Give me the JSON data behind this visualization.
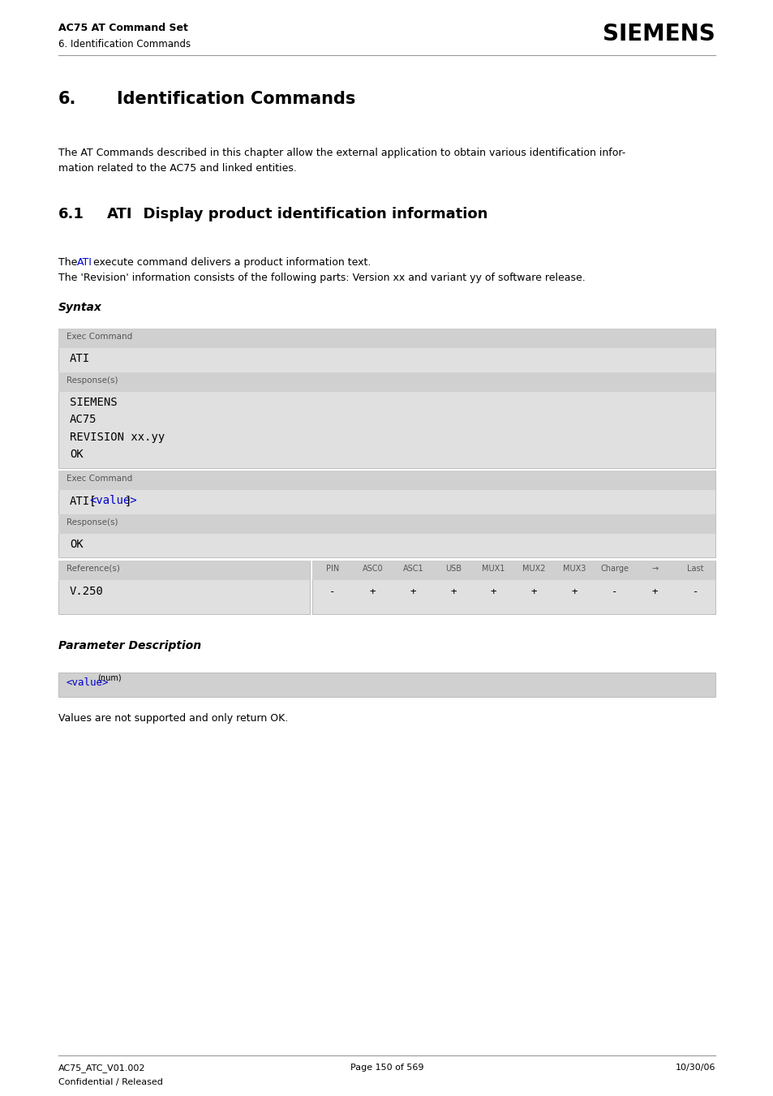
{
  "page_width": 9.54,
  "page_height": 13.51,
  "bg_color": "#ffffff",
  "header_line1": "AC75 AT Command Set",
  "header_line2": "6. Identification Commands",
  "siemens_logo": "SIEMENS",
  "chapter_number": "6.",
  "chapter_title": "Identification Commands",
  "intro_text1": "The AT Commands described in this chapter allow the external application to obtain various identification infor-",
  "intro_text2": "mation related to the AC75 and linked entities.",
  "section_number": "6.1",
  "section_title_ati": "ATI",
  "section_title_rest": "  Display product identification information",
  "desc_line1_pre": "The ",
  "desc_line1_ati": "ATI",
  "desc_line1_post": " execute command delivers a product information text.",
  "desc_line2": "The 'Revision' information consists of the following parts: Version xx and variant yy of software release.",
  "syntax_label": "Syntax",
  "box1_label": "Exec Command",
  "box1_cmd": "ATI",
  "box1_resp_label": "Response(s)",
  "box1_resp_lines": [
    "SIEMENS",
    "AC75",
    "REVISION xx.yy",
    "OK"
  ],
  "box2_label": "Exec Command",
  "box2_cmd_pre": "ATI[",
  "box2_cmd_mid": "<value>",
  "box2_cmd_post": "]",
  "box2_resp_label": "Response(s)",
  "box2_resp_lines": [
    "OK"
  ],
  "ref_label": "Reference(s)",
  "ref_value": "V.250",
  "table_headers": [
    "PIN",
    "ASC0",
    "ASC1",
    "USB",
    "MUX1",
    "MUX2",
    "MUX3",
    "Charge",
    "→",
    "Last"
  ],
  "table_values": [
    "-",
    "+",
    "+",
    "+",
    "+",
    "+",
    "+",
    "-",
    "+",
    "-"
  ],
  "param_desc_label": "Parameter Description",
  "param_name_pre": "<value>",
  "param_name_sup": "(num)",
  "param_desc": "Values are not supported and only return OK.",
  "footer_left1": "AC75_ATC_V01.002",
  "footer_left2": "Confidential / Released",
  "footer_center": "Page 150 of 569",
  "footer_right": "10/30/06",
  "color_blue": "#0000cc",
  "color_dark": "#000000",
  "color_gray_dark": "#d0d0d0",
  "color_gray_mid": "#e0e0e0",
  "color_gray_text": "#555555"
}
